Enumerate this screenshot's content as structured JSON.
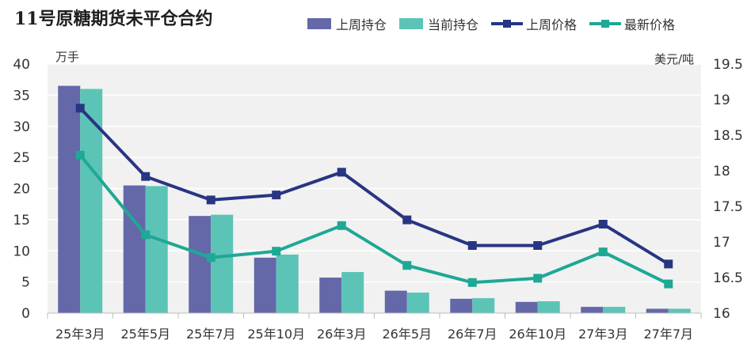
{
  "title": "11号原糖期货未平仓合约",
  "colors": {
    "bar_prev": "#6468a8",
    "bar_curr": "#5cc4b7",
    "line_prev": "#283583",
    "line_curr": "#1ea896",
    "plot_bg": "#f1f1f1",
    "grid": "#ffffff"
  },
  "chart_data": {
    "type": "bar",
    "categories": [
      "25年3月",
      "25年5月",
      "25年7月",
      "25年10月",
      "26年3月",
      "26年5月",
      "26年7月",
      "26年10月",
      "27年3月",
      "27年7月"
    ],
    "bars": [
      {
        "name": "上周持仓",
        "axis": "left",
        "values": [
          36.5,
          20.5,
          15.6,
          8.9,
          5.7,
          3.6,
          2.3,
          1.8,
          1.0,
          0.7
        ]
      },
      {
        "name": "当前持仓",
        "axis": "left",
        "values": [
          36.0,
          20.4,
          15.8,
          9.4,
          6.6,
          3.3,
          2.4,
          1.9,
          1.0,
          0.7
        ]
      }
    ],
    "lines": [
      {
        "name": "上周价格",
        "axis": "right",
        "values": [
          18.88,
          17.92,
          17.59,
          17.66,
          17.98,
          17.31,
          16.95,
          16.95,
          17.25,
          16.69
        ]
      },
      {
        "name": "最新价格",
        "axis": "right",
        "values": [
          18.22,
          17.1,
          16.78,
          16.87,
          17.23,
          16.67,
          16.43,
          16.49,
          16.86,
          16.41
        ]
      }
    ],
    "y_left": {
      "unit": "万手",
      "min": 0,
      "max": 40,
      "ticks": [
        "0",
        "5",
        "10",
        "15",
        "20",
        "25",
        "30",
        "35",
        "40"
      ]
    },
    "y_right": {
      "unit": "美元/吨",
      "min": 16,
      "max": 19.5,
      "ticks": [
        "16",
        "16.5",
        "17",
        "17.5",
        "18",
        "18.5",
        "19",
        "19.5"
      ]
    },
    "grid": true,
    "legend": "top-right"
  }
}
